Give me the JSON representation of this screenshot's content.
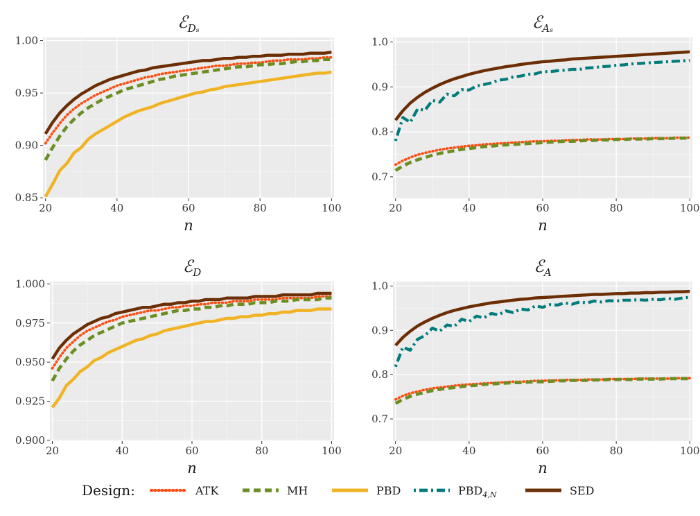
{
  "legend": {
    "title": "Design:",
    "placement": "bottom",
    "entries": [
      {
        "key": "ATK",
        "label": "ATK",
        "sub": "",
        "color": "#fc4e12",
        "dash": "dotted"
      },
      {
        "key": "MH",
        "label": "MH",
        "sub": "",
        "color": "#6b8e23",
        "dash": "dashed"
      },
      {
        "key": "PBD",
        "label": "PBD",
        "sub": "",
        "color": "#f0b323",
        "dash": "solid"
      },
      {
        "key": "PBD4N",
        "label": "PBD",
        "sub": "4,N",
        "color": "#007b7b",
        "dash": "dotdash"
      },
      {
        "key": "SED",
        "label": "SED",
        "sub": "",
        "color": "#6b2e05",
        "dash": "solid"
      }
    ]
  },
  "chart_data": [
    {
      "type": "line",
      "title": "ℰ",
      "title_sub": "Dₛ",
      "xlabel": "n",
      "ylabel": "",
      "xlim": [
        19.3,
        100.7
      ],
      "ylim": [
        0.8495,
        1.003
      ],
      "xticks": [
        20,
        40,
        60,
        80,
        100
      ],
      "xtick_labels": [
        "20",
        "40",
        "60",
        "80",
        "100"
      ],
      "yticks": [
        0.85,
        0.9,
        0.95,
        1.0
      ],
      "ytick_labels": [
        "0.85",
        "0.90",
        "0.95",
        "1.00"
      ],
      "grid": true,
      "x": [
        20,
        22,
        24,
        26,
        28,
        30,
        32,
        34,
        36,
        38,
        40,
        42,
        44,
        46,
        48,
        50,
        52,
        54,
        56,
        58,
        60,
        62,
        64,
        66,
        68,
        70,
        72,
        74,
        76,
        78,
        80,
        82,
        84,
        86,
        88,
        90,
        92,
        94,
        96,
        98,
        100
      ],
      "series": [
        {
          "key": "ATK",
          "values": [
            0.902,
            0.912,
            0.921,
            0.929,
            0.935,
            0.94,
            0.944,
            0.948,
            0.951,
            0.954,
            0.957,
            0.959,
            0.961,
            0.963,
            0.965,
            0.966,
            0.968,
            0.969,
            0.97,
            0.971,
            0.972,
            0.973,
            0.974,
            0.975,
            0.976,
            0.976,
            0.977,
            0.978,
            0.978,
            0.979,
            0.979,
            0.98,
            0.981,
            0.981,
            0.982,
            0.982,
            0.982,
            0.983,
            0.983,
            0.984,
            0.984
          ]
        },
        {
          "key": "MH",
          "values": [
            0.886,
            0.898,
            0.909,
            0.918,
            0.925,
            0.931,
            0.936,
            0.94,
            0.944,
            0.947,
            0.95,
            0.953,
            0.955,
            0.957,
            0.959,
            0.961,
            0.963,
            0.964,
            0.966,
            0.967,
            0.968,
            0.969,
            0.97,
            0.971,
            0.972,
            0.973,
            0.974,
            0.975,
            0.975,
            0.976,
            0.977,
            0.977,
            0.978,
            0.978,
            0.979,
            0.98,
            0.98,
            0.981,
            0.981,
            0.982,
            0.982
          ]
        },
        {
          "key": "PBD",
          "values": [
            0.851,
            0.863,
            0.876,
            0.883,
            0.893,
            0.898,
            0.906,
            0.911,
            0.915,
            0.919,
            0.923,
            0.927,
            0.93,
            0.933,
            0.935,
            0.937,
            0.94,
            0.942,
            0.944,
            0.946,
            0.948,
            0.95,
            0.951,
            0.953,
            0.954,
            0.956,
            0.957,
            0.958,
            0.959,
            0.96,
            0.961,
            0.962,
            0.963,
            0.964,
            0.965,
            0.966,
            0.967,
            0.968,
            0.969,
            0.969,
            0.97
          ]
        },
        {
          "key": "SED",
          "values": [
            0.911,
            0.922,
            0.931,
            0.938,
            0.944,
            0.949,
            0.953,
            0.957,
            0.96,
            0.963,
            0.965,
            0.967,
            0.969,
            0.971,
            0.972,
            0.974,
            0.975,
            0.976,
            0.977,
            0.978,
            0.979,
            0.98,
            0.981,
            0.981,
            0.982,
            0.983,
            0.983,
            0.984,
            0.984,
            0.985,
            0.985,
            0.986,
            0.986,
            0.986,
            0.987,
            0.987,
            0.987,
            0.988,
            0.988,
            0.988,
            0.989
          ]
        }
      ]
    },
    {
      "type": "line",
      "title": "ℰ",
      "title_sub": "Aₛ",
      "xlabel": "n",
      "ylabel": "",
      "xlim": [
        19.3,
        100.7
      ],
      "ylim": [
        0.652,
        1.01
      ],
      "xticks": [
        20,
        40,
        60,
        80,
        100
      ],
      "xtick_labels": [
        "20",
        "40",
        "60",
        "80",
        "100"
      ],
      "yticks": [
        0.7,
        0.8,
        0.9,
        1.0
      ],
      "ytick_labels": [
        "0.7",
        "0.8",
        "0.9",
        "1.0"
      ],
      "grid": true,
      "x": [
        20,
        22,
        24,
        26,
        28,
        30,
        32,
        34,
        36,
        38,
        40,
        42,
        44,
        46,
        48,
        50,
        52,
        54,
        56,
        58,
        60,
        62,
        64,
        66,
        68,
        70,
        72,
        74,
        76,
        78,
        80,
        82,
        84,
        86,
        88,
        90,
        92,
        94,
        96,
        98,
        100
      ],
      "series": [
        {
          "key": "ATK",
          "values": [
            0.727,
            0.736,
            0.743,
            0.749,
            0.753,
            0.757,
            0.76,
            0.763,
            0.765,
            0.767,
            0.769,
            0.77,
            0.772,
            0.773,
            0.774,
            0.775,
            0.776,
            0.777,
            0.778,
            0.779,
            0.779,
            0.78,
            0.78,
            0.781,
            0.782,
            0.782,
            0.783,
            0.783,
            0.783,
            0.784,
            0.784,
            0.784,
            0.785,
            0.785,
            0.785,
            0.786,
            0.786,
            0.786,
            0.787,
            0.787,
            0.787
          ]
        },
        {
          "key": "MH",
          "values": [
            0.714,
            0.724,
            0.732,
            0.738,
            0.743,
            0.748,
            0.752,
            0.755,
            0.758,
            0.761,
            0.763,
            0.765,
            0.767,
            0.768,
            0.77,
            0.771,
            0.772,
            0.773,
            0.774,
            0.775,
            0.776,
            0.777,
            0.778,
            0.779,
            0.779,
            0.78,
            0.781,
            0.781,
            0.782,
            0.782,
            0.783,
            0.783,
            0.784,
            0.784,
            0.784,
            0.785,
            0.785,
            0.785,
            0.786,
            0.786,
            0.786
          ]
        },
        {
          "key": "PBD4N",
          "values": [
            0.78,
            0.832,
            0.821,
            0.851,
            0.848,
            0.87,
            0.866,
            0.884,
            0.88,
            0.894,
            0.893,
            0.902,
            0.905,
            0.909,
            0.915,
            0.917,
            0.922,
            0.924,
            0.928,
            0.929,
            0.934,
            0.934,
            0.936,
            0.937,
            0.939,
            0.939,
            0.942,
            0.943,
            0.945,
            0.946,
            0.948,
            0.949,
            0.951,
            0.952,
            0.953,
            0.954,
            0.955,
            0.956,
            0.957,
            0.958,
            0.959
          ]
        },
        {
          "key": "SED",
          "values": [
            0.826,
            0.847,
            0.864,
            0.877,
            0.888,
            0.897,
            0.905,
            0.912,
            0.918,
            0.923,
            0.928,
            0.932,
            0.936,
            0.939,
            0.942,
            0.945,
            0.947,
            0.95,
            0.952,
            0.954,
            0.956,
            0.957,
            0.959,
            0.96,
            0.962,
            0.963,
            0.964,
            0.965,
            0.966,
            0.967,
            0.968,
            0.969,
            0.97,
            0.971,
            0.972,
            0.973,
            0.974,
            0.975,
            0.976,
            0.977,
            0.978
          ]
        }
      ]
    },
    {
      "type": "line",
      "title": "ℰ",
      "title_sub": "D",
      "xlabel": "n",
      "ylabel": "",
      "xlim": [
        19.3,
        100.7
      ],
      "ylim": [
        0.8995,
        1.0015
      ],
      "xticks": [
        20,
        40,
        60,
        80,
        100
      ],
      "xtick_labels": [
        "20",
        "40",
        "60",
        "80",
        "100"
      ],
      "yticks": [
        0.9,
        0.925,
        0.95,
        0.975,
        1.0
      ],
      "ytick_labels": [
        "0.900",
        "0.925",
        "0.950",
        "0.975",
        "1.000"
      ],
      "grid": true,
      "x": [
        20,
        22,
        24,
        26,
        28,
        30,
        32,
        34,
        36,
        38,
        40,
        42,
        44,
        46,
        48,
        50,
        52,
        54,
        56,
        58,
        60,
        62,
        64,
        66,
        68,
        70,
        72,
        74,
        76,
        78,
        80,
        82,
        84,
        86,
        88,
        90,
        92,
        94,
        96,
        98,
        100
      ],
      "series": [
        {
          "key": "ATK",
          "values": [
            0.946,
            0.953,
            0.959,
            0.963,
            0.967,
            0.97,
            0.972,
            0.974,
            0.976,
            0.977,
            0.979,
            0.98,
            0.981,
            0.982,
            0.983,
            0.983,
            0.984,
            0.985,
            0.985,
            0.986,
            0.986,
            0.987,
            0.987,
            0.988,
            0.988,
            0.988,
            0.989,
            0.989,
            0.989,
            0.99,
            0.99,
            0.99,
            0.99,
            0.991,
            0.991,
            0.991,
            0.991,
            0.991,
            0.992,
            0.992,
            0.992
          ]
        },
        {
          "key": "MH",
          "values": [
            0.938,
            0.946,
            0.952,
            0.957,
            0.961,
            0.964,
            0.967,
            0.969,
            0.971,
            0.973,
            0.975,
            0.976,
            0.977,
            0.978,
            0.979,
            0.98,
            0.981,
            0.982,
            0.983,
            0.983,
            0.984,
            0.984,
            0.985,
            0.985,
            0.986,
            0.986,
            0.987,
            0.987,
            0.987,
            0.988,
            0.988,
            0.988,
            0.989,
            0.989,
            0.989,
            0.99,
            0.99,
            0.99,
            0.99,
            0.991,
            0.991
          ]
        },
        {
          "key": "PBD",
          "values": [
            0.921,
            0.927,
            0.935,
            0.939,
            0.944,
            0.947,
            0.951,
            0.953,
            0.956,
            0.958,
            0.96,
            0.962,
            0.964,
            0.965,
            0.967,
            0.968,
            0.97,
            0.971,
            0.972,
            0.973,
            0.974,
            0.975,
            0.976,
            0.976,
            0.977,
            0.978,
            0.978,
            0.979,
            0.979,
            0.98,
            0.98,
            0.981,
            0.981,
            0.982,
            0.982,
            0.983,
            0.983,
            0.983,
            0.984,
            0.984,
            0.984
          ]
        },
        {
          "key": "SED",
          "values": [
            0.952,
            0.959,
            0.964,
            0.968,
            0.971,
            0.974,
            0.976,
            0.978,
            0.979,
            0.981,
            0.982,
            0.983,
            0.984,
            0.985,
            0.985,
            0.986,
            0.987,
            0.987,
            0.988,
            0.988,
            0.989,
            0.989,
            0.99,
            0.99,
            0.99,
            0.991,
            0.991,
            0.991,
            0.991,
            0.992,
            0.992,
            0.992,
            0.992,
            0.993,
            0.993,
            0.993,
            0.993,
            0.993,
            0.994,
            0.994,
            0.994
          ]
        }
      ]
    },
    {
      "type": "line",
      "title": "ℰ",
      "title_sub": "A",
      "xlabel": "n",
      "ylabel": "",
      "xlim": [
        19.3,
        100.7
      ],
      "ylim": [
        0.65,
        1.01
      ],
      "xticks": [
        20,
        40,
        60,
        80,
        100
      ],
      "xtick_labels": [
        "20",
        "40",
        "60",
        "80",
        "100"
      ],
      "yticks": [
        0.7,
        0.8,
        0.9,
        1.0
      ],
      "ytick_labels": [
        "0.7",
        "0.8",
        "0.9",
        "1.0"
      ],
      "grid": true,
      "x": [
        20,
        22,
        24,
        26,
        28,
        30,
        32,
        34,
        36,
        38,
        40,
        42,
        44,
        46,
        48,
        50,
        52,
        54,
        56,
        58,
        60,
        62,
        64,
        66,
        68,
        70,
        72,
        74,
        76,
        78,
        80,
        82,
        84,
        86,
        88,
        90,
        92,
        94,
        96,
        98,
        100
      ],
      "series": [
        {
          "key": "ATK",
          "values": [
            0.744,
            0.752,
            0.758,
            0.762,
            0.766,
            0.769,
            0.771,
            0.773,
            0.775,
            0.777,
            0.778,
            0.779,
            0.78,
            0.781,
            0.782,
            0.783,
            0.784,
            0.784,
            0.785,
            0.786,
            0.786,
            0.787,
            0.787,
            0.788,
            0.788,
            0.788,
            0.789,
            0.789,
            0.789,
            0.79,
            0.79,
            0.79,
            0.79,
            0.791,
            0.791,
            0.791,
            0.791,
            0.791,
            0.792,
            0.792,
            0.792
          ]
        },
        {
          "key": "MH",
          "values": [
            0.735,
            0.744,
            0.751,
            0.756,
            0.76,
            0.764,
            0.767,
            0.769,
            0.771,
            0.773,
            0.775,
            0.776,
            0.778,
            0.779,
            0.78,
            0.781,
            0.782,
            0.782,
            0.783,
            0.784,
            0.784,
            0.785,
            0.786,
            0.786,
            0.787,
            0.787,
            0.787,
            0.788,
            0.788,
            0.789,
            0.789,
            0.789,
            0.789,
            0.79,
            0.79,
            0.79,
            0.79,
            0.791,
            0.791,
            0.791,
            0.791
          ]
        },
        {
          "key": "PBD4N",
          "values": [
            0.818,
            0.862,
            0.855,
            0.88,
            0.888,
            0.905,
            0.898,
            0.912,
            0.909,
            0.925,
            0.92,
            0.932,
            0.928,
            0.938,
            0.935,
            0.944,
            0.94,
            0.948,
            0.946,
            0.955,
            0.952,
            0.958,
            0.957,
            0.962,
            0.959,
            0.964,
            0.962,
            0.966,
            0.964,
            0.967,
            0.966,
            0.968,
            0.968,
            0.969,
            0.968,
            0.97,
            0.969,
            0.972,
            0.97,
            0.973,
            0.975
          ]
        },
        {
          "key": "SED",
          "values": [
            0.866,
            0.884,
            0.898,
            0.91,
            0.919,
            0.927,
            0.934,
            0.94,
            0.945,
            0.949,
            0.953,
            0.956,
            0.959,
            0.962,
            0.964,
            0.966,
            0.968,
            0.97,
            0.971,
            0.973,
            0.974,
            0.975,
            0.976,
            0.977,
            0.978,
            0.979,
            0.98,
            0.981,
            0.981,
            0.982,
            0.983,
            0.983,
            0.984,
            0.984,
            0.985,
            0.985,
            0.986,
            0.986,
            0.987,
            0.987,
            0.988
          ]
        }
      ]
    }
  ]
}
